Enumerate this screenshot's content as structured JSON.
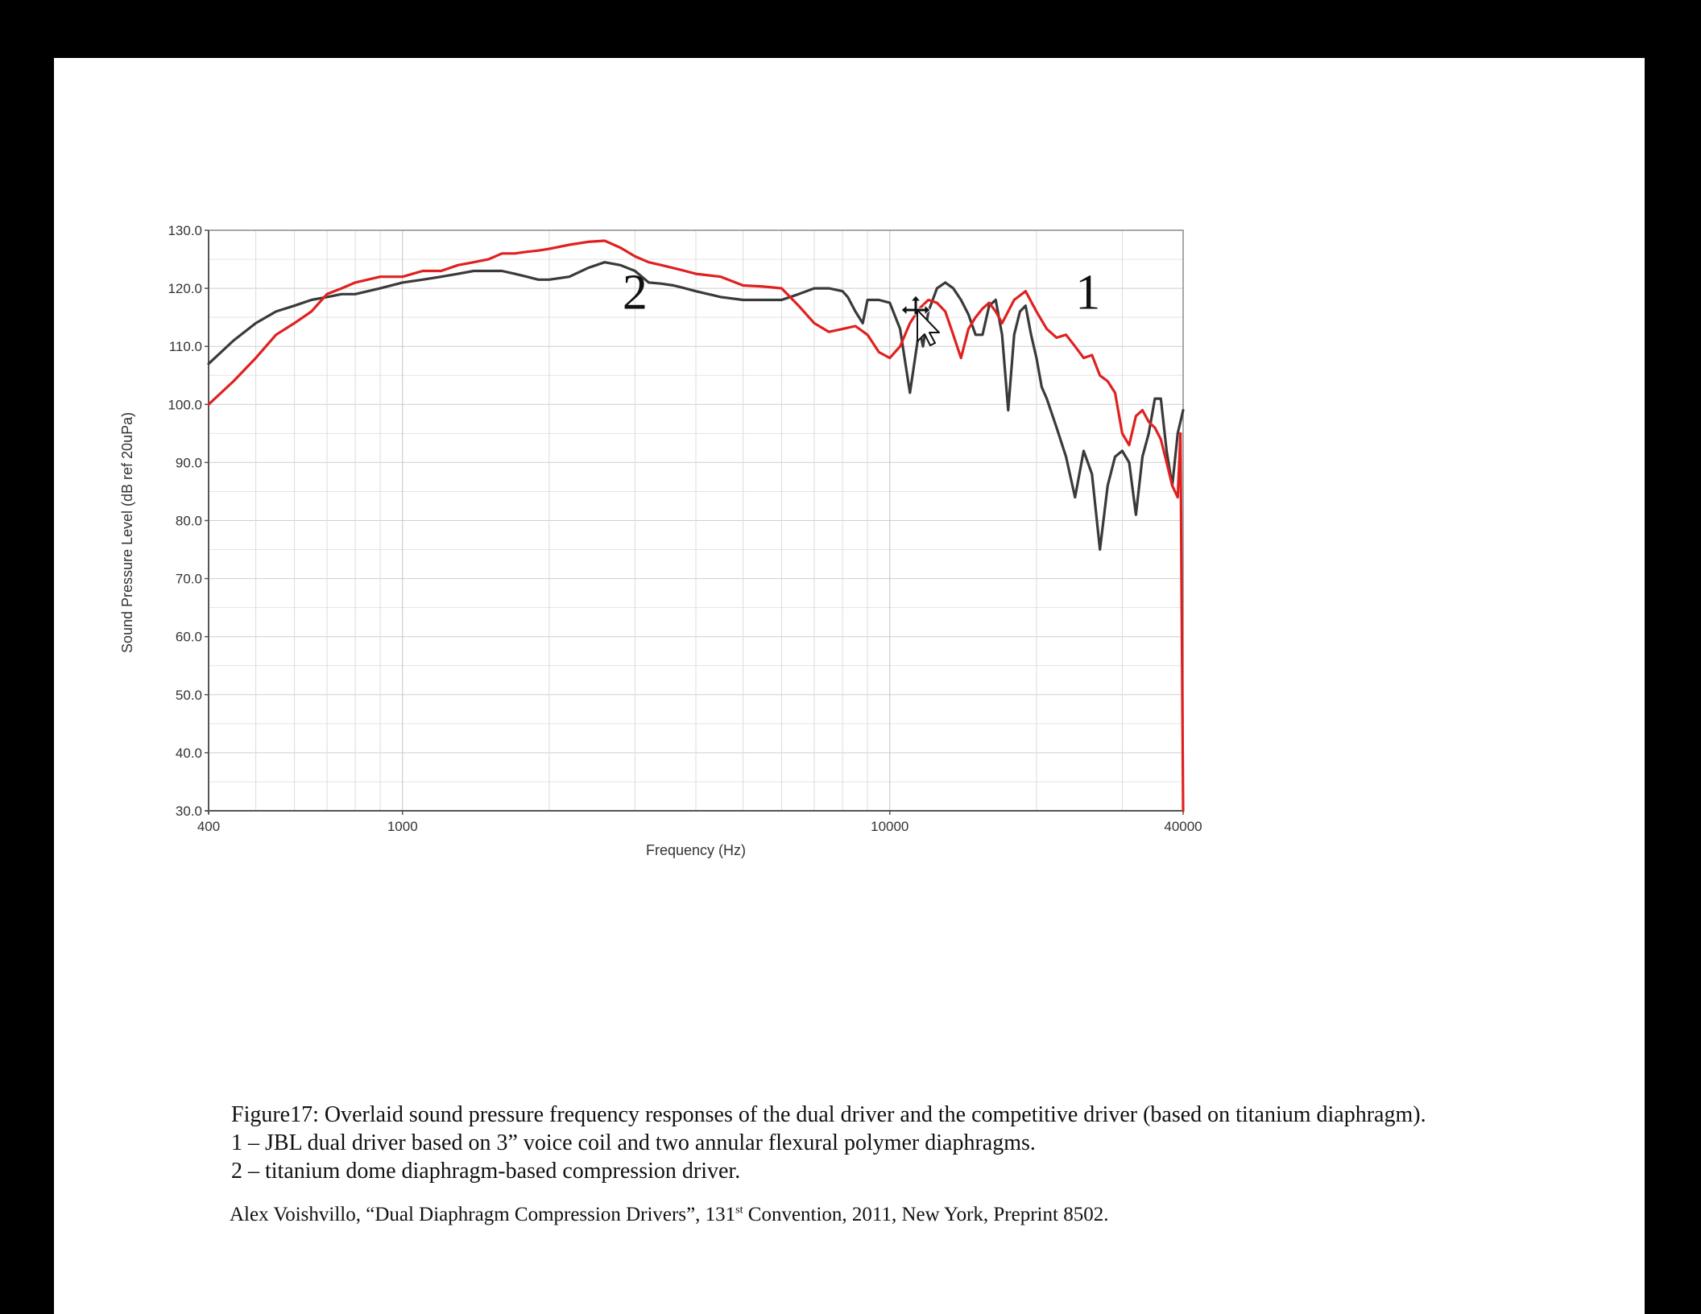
{
  "chart_data": {
    "type": "line",
    "xlabel": "Frequency (Hz)",
    "ylabel": "Sound Pressure Level (dB ref 20uPa)",
    "x_scale": "log",
    "xlim": [
      400,
      40000
    ],
    "ylim": [
      30,
      130
    ],
    "x_ticks": [
      400,
      1000,
      10000,
      40000
    ],
    "x_tick_labels": [
      "400",
      "1000",
      "10000",
      "40000"
    ],
    "y_ticks": [
      30,
      40,
      50,
      60,
      70,
      80,
      90,
      100,
      110,
      120,
      130
    ],
    "y_tick_labels": [
      "30.0",
      "40.0",
      "50.0",
      "60.0",
      "70.0",
      "80.0",
      "90.0",
      "100.0",
      "110.0",
      "120.0",
      "130.0"
    ],
    "grid": true,
    "series": [
      {
        "name": "1",
        "color": "#e02020",
        "x": [
          400,
          450,
          500,
          550,
          600,
          650,
          700,
          750,
          800,
          900,
          1000,
          1100,
          1200,
          1300,
          1400,
          1500,
          1600,
          1700,
          1800,
          1900,
          2000,
          2200,
          2400,
          2600,
          2800,
          3000,
          3200,
          3400,
          3600,
          3800,
          4000,
          4500,
          5000,
          5500,
          6000,
          6500,
          7000,
          7500,
          8000,
          8500,
          9000,
          9500,
          10000,
          10500,
          11000,
          11500,
          12000,
          12500,
          13000,
          13500,
          14000,
          14500,
          15000,
          15500,
          16000,
          16500,
          17000,
          18000,
          19000,
          20000,
          21000,
          22000,
          23000,
          24000,
          25000,
          26000,
          27000,
          28000,
          29000,
          30000,
          31000,
          32000,
          33000,
          34000,
          35000,
          36000,
          37000,
          38000,
          39000,
          39500,
          40000
        ],
        "y": [
          100,
          104,
          108,
          112,
          114,
          116,
          119,
          120,
          121,
          122,
          122,
          123,
          123,
          124,
          124.5,
          125,
          126,
          126,
          126.3,
          126.5,
          126.8,
          127.5,
          128,
          128.2,
          127,
          125.5,
          124.5,
          124,
          123.5,
          123,
          122.5,
          122,
          120.5,
          120.3,
          120,
          117,
          114,
          112.5,
          113,
          113.5,
          112,
          109,
          108,
          110,
          114,
          116.5,
          118,
          117.5,
          116,
          112,
          108,
          113,
          115,
          116.5,
          117.5,
          116,
          114,
          118,
          119.5,
          116,
          113,
          111.5,
          112,
          110,
          108,
          108.5,
          105,
          104,
          102,
          95,
          93,
          98,
          99,
          97,
          96,
          94,
          90,
          86,
          84,
          95,
          30
        ],
        "label": "1"
      },
      {
        "name": "2",
        "color": "#3a3a3a",
        "x": [
          400,
          450,
          500,
          550,
          600,
          650,
          700,
          750,
          800,
          900,
          1000,
          1100,
          1200,
          1300,
          1400,
          1500,
          1600,
          1700,
          1800,
          1900,
          2000,
          2200,
          2400,
          2600,
          2800,
          3000,
          3200,
          3400,
          3600,
          3800,
          4000,
          4500,
          5000,
          5500,
          6000,
          6500,
          7000,
          7500,
          8000,
          8200,
          8500,
          8800,
          9000,
          9500,
          10000,
          10500,
          11000,
          11500,
          11700,
          12000,
          12500,
          13000,
          13500,
          14000,
          14500,
          15000,
          15500,
          16000,
          16500,
          17000,
          17500,
          18000,
          18500,
          19000,
          19500,
          20000,
          20500,
          21000,
          22000,
          23000,
          24000,
          25000,
          26000,
          27000,
          28000,
          29000,
          30000,
          31000,
          32000,
          33000,
          34000,
          35000,
          36000,
          37000,
          38000,
          39000,
          40000
        ],
        "y": [
          107,
          111,
          114,
          116,
          117,
          118,
          118.5,
          119,
          119,
          120,
          121,
          121.5,
          122,
          122.5,
          123,
          123,
          123,
          122.5,
          122,
          121.5,
          121.5,
          122,
          123.5,
          124.5,
          124,
          123,
          121,
          120.8,
          120.5,
          120,
          119.5,
          118.5,
          118,
          118,
          118,
          119,
          120,
          120,
          119.5,
          118.5,
          116,
          114,
          118,
          118,
          117.5,
          113,
          102,
          113,
          110,
          116,
          120,
          121,
          120,
          118,
          115.5,
          112,
          112,
          117,
          118,
          112,
          99,
          112,
          116,
          117,
          112,
          108,
          103,
          101,
          96,
          91,
          84,
          92,
          88,
          75,
          86,
          91,
          92,
          90,
          81,
          91,
          95,
          101,
          101,
          92,
          86,
          95,
          99
        ]
      }
    ],
    "annotations": [
      {
        "text": "2",
        "x": 3000,
        "y": 119.5
      },
      {
        "text": "1",
        "x": 25500,
        "y": 119.5
      }
    ]
  },
  "caption": {
    "line1": "Figure17: Overlaid sound pressure frequency responses of the dual driver and the competitive driver (based on titanium diaphragm).",
    "line2": "1 – JBL dual driver based on 3” voice coil and two annular flexural polymer diaphragms.",
    "line3": "2 – titanium dome diaphragm-based compression driver."
  },
  "citation": {
    "before_sup": "Alex Voishvillo, “Dual Diaphragm Compression Drivers”, 131",
    "sup": "st",
    "after_sup": " Convention, 2011, New York, Preprint 8502."
  },
  "cursor_icon": "move-cursor-icon"
}
